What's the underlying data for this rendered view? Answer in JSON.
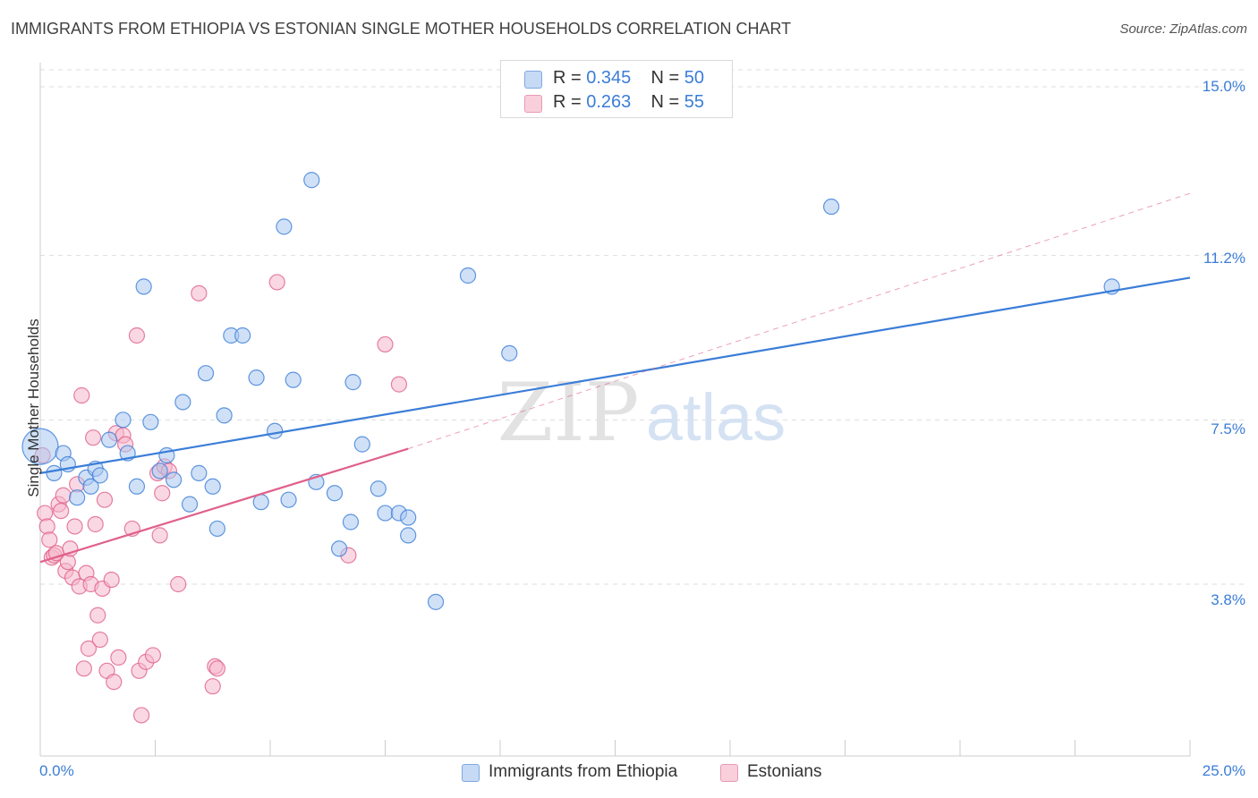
{
  "header": {
    "title": "IMMIGRANTS FROM ETHIOPIA VS ESTONIAN SINGLE MOTHER HOUSEHOLDS CORRELATION CHART",
    "source": "Source: ZipAtlas.com"
  },
  "watermark": {
    "zip": "ZIP",
    "atlas": "atlas"
  },
  "legend": {
    "rows": [
      {
        "r_label": "R = ",
        "r_value": "0.345",
        "n_label": "N = ",
        "n_value": "50"
      },
      {
        "r_label": "R = ",
        "r_value": "0.263",
        "n_label": "N = ",
        "n_value": "55"
      }
    ]
  },
  "colors": {
    "ethiopia_fill": "#a9c8f0",
    "ethiopia_stroke": "#3b7dd8",
    "estonian_fill": "#f5b8cc",
    "estonian_stroke": "#e0608a",
    "grid": "#dddddd",
    "axis_text": "#3b7dd8"
  },
  "chart_data": {
    "type": "scatter",
    "title": "IMMIGRANTS FROM ETHIOPIA VS ESTONIAN SINGLE MOTHER HOUSEHOLDS CORRELATION CHART",
    "xlabel": "",
    "ylabel": "Single Mother Households",
    "xlim": [
      0,
      25
    ],
    "ylim": [
      0,
      15.5
    ],
    "x_ticks": [
      "0.0%",
      "25.0%"
    ],
    "y_ticks": [
      {
        "value": 3.8,
        "label": "3.8%"
      },
      {
        "value": 7.5,
        "label": "7.5%"
      },
      {
        "value": 11.2,
        "label": "11.2%"
      },
      {
        "value": 15.0,
        "label": "15.0%"
      }
    ],
    "grid": true,
    "legend_position": "top-center",
    "series": [
      {
        "name": "Immigrants from Ethiopia",
        "r": 0.345,
        "n": 50,
        "trend": {
          "x0": 0,
          "y0": 6.3,
          "x1": 25,
          "y1": 10.7
        },
        "points": [
          [
            0.0,
            6.9
          ],
          [
            0.3,
            6.3
          ],
          [
            0.5,
            6.75
          ],
          [
            0.6,
            6.5
          ],
          [
            0.8,
            5.75
          ],
          [
            1.0,
            6.2
          ],
          [
            1.1,
            6.0
          ],
          [
            1.2,
            6.4
          ],
          [
            1.3,
            6.25
          ],
          [
            1.5,
            7.05
          ],
          [
            1.8,
            7.5
          ],
          [
            1.9,
            6.75
          ],
          [
            2.1,
            6.0
          ],
          [
            2.25,
            10.5
          ],
          [
            2.4,
            7.45
          ],
          [
            2.6,
            6.35
          ],
          [
            2.75,
            6.7
          ],
          [
            2.9,
            6.15
          ],
          [
            3.1,
            7.9
          ],
          [
            3.25,
            5.6
          ],
          [
            3.45,
            6.3
          ],
          [
            3.6,
            8.55
          ],
          [
            3.75,
            6.0
          ],
          [
            3.85,
            5.05
          ],
          [
            4.0,
            7.6
          ],
          [
            4.15,
            9.4
          ],
          [
            4.4,
            9.4
          ],
          [
            4.7,
            8.45
          ],
          [
            4.8,
            5.65
          ],
          [
            5.1,
            7.25
          ],
          [
            5.3,
            11.85
          ],
          [
            5.4,
            5.7
          ],
          [
            5.5,
            8.4
          ],
          [
            5.9,
            12.9
          ],
          [
            6.0,
            6.1
          ],
          [
            6.4,
            5.85
          ],
          [
            6.5,
            4.6
          ],
          [
            6.75,
            5.2
          ],
          [
            6.8,
            8.35
          ],
          [
            7.0,
            6.95
          ],
          [
            7.35,
            5.95
          ],
          [
            7.5,
            5.4
          ],
          [
            7.8,
            5.4
          ],
          [
            8.0,
            4.9
          ],
          [
            8.0,
            5.3
          ],
          [
            8.6,
            3.4
          ],
          [
            9.3,
            10.75
          ],
          [
            10.2,
            9.0
          ],
          [
            17.2,
            12.3
          ],
          [
            23.3,
            10.5
          ]
        ]
      },
      {
        "name": "Estonians",
        "r": 0.263,
        "n": 55,
        "trend": {
          "x0": 0,
          "y0": 4.3,
          "x1": 8.0,
          "y1": 6.85
        },
        "trend_ext": {
          "x0": 8.0,
          "y0": 6.85,
          "x1": 25,
          "y1": 12.6
        },
        "points": [
          [
            0.05,
            6.7
          ],
          [
            0.1,
            5.4
          ],
          [
            0.15,
            5.1
          ],
          [
            0.2,
            4.8
          ],
          [
            0.25,
            4.4
          ],
          [
            0.3,
            4.45
          ],
          [
            0.35,
            4.5
          ],
          [
            0.4,
            5.6
          ],
          [
            0.45,
            5.45
          ],
          [
            0.5,
            5.8
          ],
          [
            0.55,
            4.1
          ],
          [
            0.6,
            4.3
          ],
          [
            0.65,
            4.6
          ],
          [
            0.7,
            3.95
          ],
          [
            0.75,
            5.1
          ],
          [
            0.8,
            6.05
          ],
          [
            0.85,
            3.75
          ],
          [
            0.9,
            8.05
          ],
          [
            0.95,
            1.9
          ],
          [
            1.0,
            4.05
          ],
          [
            1.05,
            2.35
          ],
          [
            1.1,
            3.8
          ],
          [
            1.15,
            7.1
          ],
          [
            1.2,
            5.15
          ],
          [
            1.25,
            3.1
          ],
          [
            1.3,
            2.55
          ],
          [
            1.35,
            3.7
          ],
          [
            1.4,
            5.7
          ],
          [
            1.45,
            1.85
          ],
          [
            1.55,
            3.9
          ],
          [
            1.6,
            1.6
          ],
          [
            1.65,
            7.2
          ],
          [
            1.7,
            2.15
          ],
          [
            1.8,
            7.15
          ],
          [
            1.85,
            6.95
          ],
          [
            2.0,
            5.05
          ],
          [
            2.1,
            9.4
          ],
          [
            2.15,
            1.85
          ],
          [
            2.2,
            0.85
          ],
          [
            2.3,
            2.05
          ],
          [
            2.45,
            2.2
          ],
          [
            2.55,
            6.3
          ],
          [
            2.6,
            4.9
          ],
          [
            2.65,
            5.85
          ],
          [
            2.7,
            6.45
          ],
          [
            2.8,
            6.35
          ],
          [
            3.0,
            3.8
          ],
          [
            3.45,
            10.35
          ],
          [
            3.75,
            1.5
          ],
          [
            3.8,
            1.95
          ],
          [
            3.85,
            1.9
          ],
          [
            5.15,
            10.6
          ],
          [
            6.7,
            4.45
          ],
          [
            7.5,
            9.2
          ],
          [
            7.8,
            8.3
          ]
        ]
      }
    ]
  }
}
